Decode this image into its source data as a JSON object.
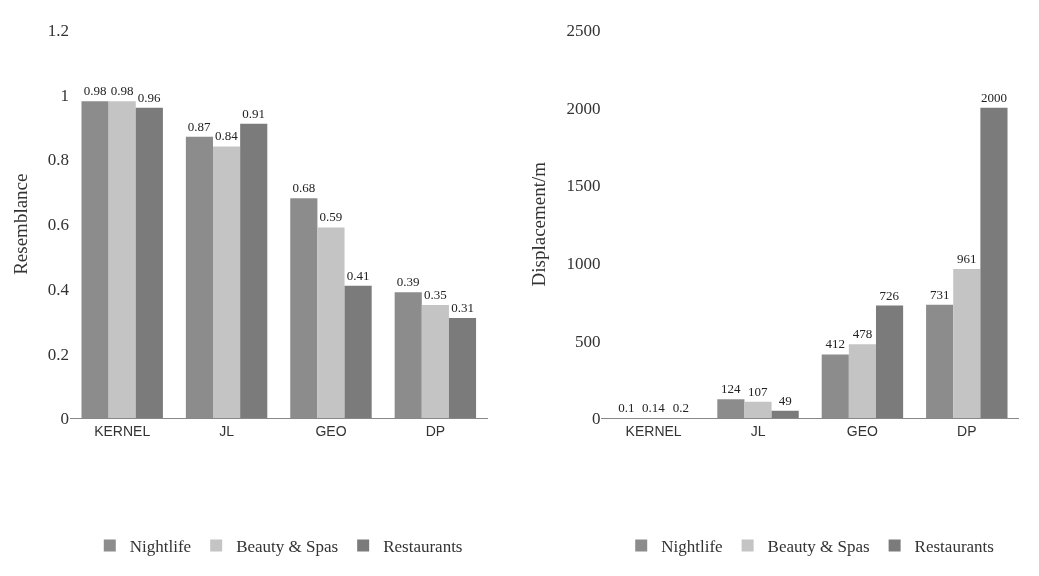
{
  "chart_data": [
    {
      "type": "bar",
      "ylabel": "Resemblance",
      "categories": [
        "KERNEL",
        "JL",
        "GEO",
        "DP"
      ],
      "ylim": [
        0,
        1.2
      ],
      "yticks": [
        0,
        0.2,
        0.4,
        0.6,
        0.8,
        1,
        1.2
      ],
      "data_labels": true,
      "legend": "bottom",
      "series": [
        {
          "name": "Nightlife",
          "color": "#8c8c8c",
          "values": [
            0.98,
            0.87,
            0.68,
            0.39
          ]
        },
        {
          "name": "Beauty & Spas",
          "color": "#c4c4c4",
          "values": [
            0.98,
            0.84,
            0.59,
            0.35
          ]
        },
        {
          "name": "Restaurants",
          "color": "#7b7b7b",
          "values": [
            0.96,
            0.91,
            0.41,
            0.31
          ]
        }
      ]
    },
    {
      "type": "bar",
      "ylabel": "Displacement/m",
      "categories": [
        "KERNEL",
        "JL",
        "GEO",
        "DP"
      ],
      "ylim": [
        0,
        2500
      ],
      "yticks": [
        0,
        500,
        1000,
        1500,
        2000,
        2500
      ],
      "data_labels": true,
      "legend": "bottom",
      "series": [
        {
          "name": "Nightlife",
          "color": "#8c8c8c",
          "values": [
            0.1,
            124,
            412,
            731
          ]
        },
        {
          "name": "Beauty & Spas",
          "color": "#c4c4c4",
          "values": [
            0.14,
            107,
            478,
            961
          ]
        },
        {
          "name": "Restaurants",
          "color": "#7b7b7b",
          "values": [
            0.2,
            49,
            726,
            2000
          ]
        }
      ]
    }
  ]
}
